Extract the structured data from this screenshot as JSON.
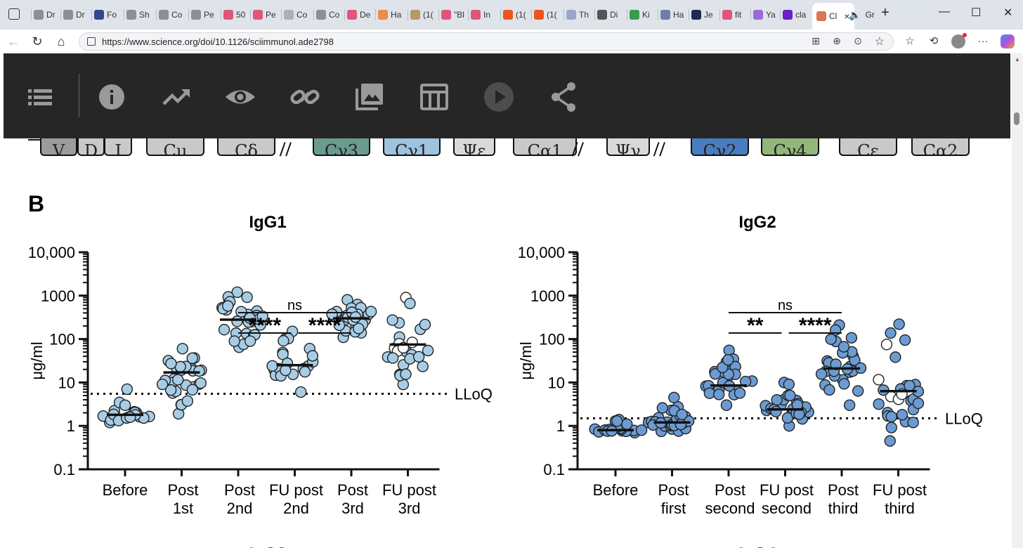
{
  "browser": {
    "tabs": [
      {
        "label": "Dr",
        "color": "#8a8f98"
      },
      {
        "label": "Dr",
        "color": "#8a8f98"
      },
      {
        "label": "Fo",
        "color": "#2e4a8a"
      },
      {
        "label": "Sh",
        "color": "#8a8f98"
      },
      {
        "label": "Co",
        "color": "#8a8f98"
      },
      {
        "label": "Pe",
        "color": "#8a8f98"
      },
      {
        "label": "50",
        "color": "#e0557a"
      },
      {
        "label": "Pe",
        "color": "#e0557a"
      },
      {
        "label": "Co",
        "color": "#b0b0b0"
      },
      {
        "label": "Co",
        "color": "#8a8f98"
      },
      {
        "label": "De",
        "color": "#e0557a"
      },
      {
        "label": "Ha",
        "color": "#f08a4b"
      },
      {
        "label": "(1(",
        "color": "#b89868"
      },
      {
        "label": "\"Bl",
        "color": "#e0557a"
      },
      {
        "label": "In",
        "color": "#e0557a"
      },
      {
        "label": "(1(",
        "color": "#f0541e"
      },
      {
        "label": "(1(",
        "color": "#f0541e"
      },
      {
        "label": "Th",
        "color": "#9aa7c9"
      },
      {
        "label": "Di",
        "color": "#555"
      },
      {
        "label": "Ki",
        "color": "#3a9b4f"
      },
      {
        "label": "Ha",
        "color": "#6b7fa8"
      },
      {
        "label": "Je",
        "color": "#1d2a55"
      },
      {
        "label": "fit",
        "color": "#e0557a"
      },
      {
        "label": "Ya",
        "color": "#9b6ad8"
      },
      {
        "label": "cla",
        "color": "#6a1fc7"
      }
    ],
    "active_tab": {
      "label": "Cl",
      "close": "×"
    },
    "extra_tab": {
      "label": "Gr"
    },
    "new_tab": "+",
    "url": "https://www.science.org/doi/10.1126/sciimmunol.ade2798",
    "window_controls": [
      "—",
      "☐",
      "✕"
    ]
  },
  "toolbar": {
    "icons": [
      "list-icon",
      "info-icon",
      "trending-icon",
      "eye-icon",
      "link-icon",
      "image-icon",
      "table-icon",
      "play-icon",
      "share-icon"
    ]
  },
  "gene_segments": [
    {
      "label": "V",
      "fill": "#9b9b9b"
    },
    {
      "label": "D",
      "fill": "#c9c9c9"
    },
    {
      "label": "J",
      "fill": "#c9c9c9"
    },
    {
      "label": "Cμ",
      "fill": "#c9c9c9"
    },
    {
      "label": "Cδ",
      "fill": "#c9c9c9"
    },
    {
      "label": "Cγ3",
      "fill": "#6b9b8e"
    },
    {
      "label": "Cγ1",
      "fill": "#9dc3de"
    },
    {
      "label": "Ψε",
      "fill": "#d9d9d9"
    },
    {
      "label": "Cα1",
      "fill": "#c9c9c9"
    },
    {
      "label": "Ψγ",
      "fill": "#d9d9d9"
    },
    {
      "label": "Cγ2",
      "fill": "#4a7dbf"
    },
    {
      "label": "Cγ4",
      "fill": "#93b77b"
    },
    {
      "label": "Cε",
      "fill": "#c9c9c9"
    },
    {
      "label": "Cα2",
      "fill": "#c9c9c9"
    }
  ],
  "figure": {
    "panel_label": "B",
    "yaxis_label": "μg/ml",
    "lloq_label": "LLoQ",
    "bottom_partial": [
      "IgG3",
      "IgG4"
    ]
  },
  "chart_data": [
    {
      "type": "scatter",
      "title": "IgG1",
      "ylabel": "μg/ml",
      "yscale": "log",
      "ylim": [
        0.1,
        10000
      ],
      "yticks": [
        "0.1",
        "1",
        "10",
        "100",
        "1000",
        "10,000"
      ],
      "point_color": "#a7cde6",
      "lloq": 5.5,
      "groups": [
        {
          "label": [
            "Before",
            ""
          ],
          "median": 1.8,
          "spread": [
            1.2,
            7.0
          ],
          "n": 20,
          "open_fraction": 0
        },
        {
          "label": [
            "Post",
            "1st"
          ],
          "median": 17,
          "spread": [
            1.9,
            60
          ],
          "n": 30,
          "open_fraction": 0
        },
        {
          "label": [
            "Post",
            "2nd"
          ],
          "median": 280,
          "spread": [
            65,
            1200
          ],
          "n": 30,
          "open_fraction": 0
        },
        {
          "label": [
            "FU post",
            "2nd"
          ],
          "median": 25,
          "spread": [
            6,
            150
          ],
          "n": 22,
          "open_fraction": 0
        },
        {
          "label": [
            "Post",
            "3rd"
          ],
          "median": 300,
          "spread": [
            110,
            800
          ],
          "n": 30,
          "open_fraction": 0
        },
        {
          "label": [
            "FU post",
            "3rd"
          ],
          "median": 75,
          "spread": [
            9,
            900
          ],
          "n": 26,
          "open_fraction": 0.3
        }
      ],
      "brackets": [
        {
          "from": 2,
          "to": 4,
          "text": "ns",
          "level": 0
        },
        {
          "from": 2,
          "to": 3,
          "text": "****",
          "level": 1
        },
        {
          "from": 3,
          "to": 4,
          "text": "****",
          "level": 1
        }
      ]
    },
    {
      "type": "scatter",
      "title": "IgG2",
      "ylabel": "μg/ml",
      "yscale": "log",
      "ylim": [
        0.1,
        10000
      ],
      "yticks": [
        "0.1",
        "1",
        "10",
        "100",
        "1000",
        "10,000"
      ],
      "point_color": "#6b9bd2",
      "lloq": 1.5,
      "groups": [
        {
          "label": [
            "Before",
            ""
          ],
          "median": 0.8,
          "spread": [
            0.7,
            1.4
          ],
          "n": 20,
          "open_fraction": 0
        },
        {
          "label": [
            "Post",
            "first"
          ],
          "median": 1.2,
          "spread": [
            0.75,
            4.5
          ],
          "n": 30,
          "open_fraction": 0
        },
        {
          "label": [
            "Post",
            "second"
          ],
          "median": 8.5,
          "spread": [
            3,
            55
          ],
          "n": 30,
          "open_fraction": 0
        },
        {
          "label": [
            "FU post",
            "second"
          ],
          "median": 2.4,
          "spread": [
            1.0,
            10
          ],
          "n": 30,
          "open_fraction": 0
        },
        {
          "label": [
            "Post",
            "third"
          ],
          "median": 21,
          "spread": [
            3,
            210
          ],
          "n": 28,
          "open_fraction": 0
        },
        {
          "label": [
            "FU post",
            "third"
          ],
          "median": 6.3,
          "spread": [
            0.45,
            220
          ],
          "n": 28,
          "open_fraction": 0.3
        }
      ],
      "brackets": [
        {
          "from": 2,
          "to": 4,
          "text": "ns",
          "level": 0
        },
        {
          "from": 2,
          "to": 3,
          "text": "**",
          "level": 1
        },
        {
          "from": 3,
          "to": 4,
          "text": "****",
          "level": 1
        }
      ]
    }
  ]
}
